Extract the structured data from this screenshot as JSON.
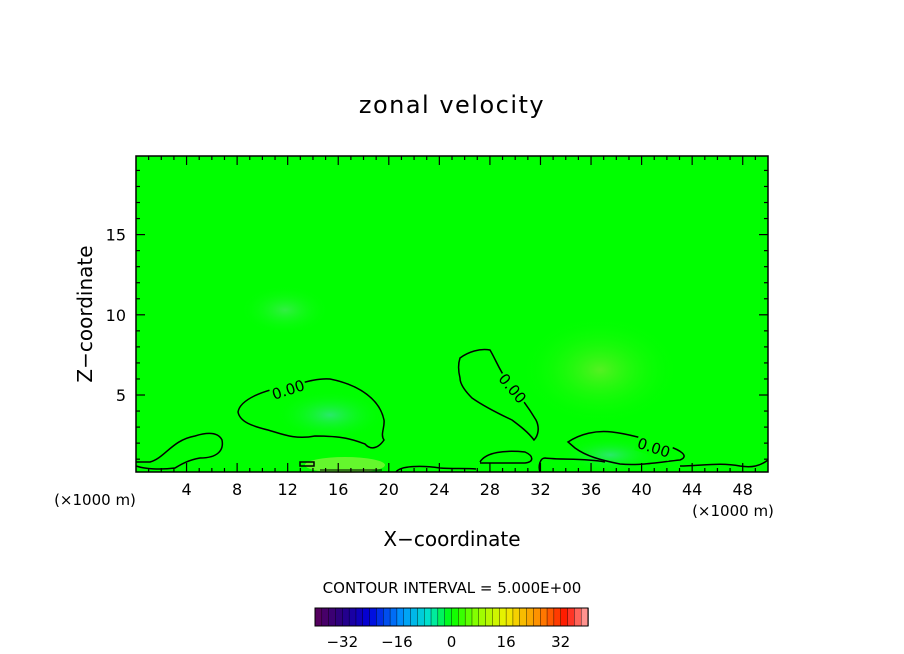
{
  "chart_data": {
    "type": "heatmap",
    "title": "zonal velocity",
    "xlabel": "X−coordinate",
    "ylabel": "Z−coordinate",
    "x_unit_left": "(×1000 m)",
    "x_unit_right": "(×1000 m)",
    "xlim": [
      0,
      50
    ],
    "ylim": [
      0.2,
      19.9
    ],
    "x_ticks": [
      4,
      8,
      12,
      16,
      20,
      24,
      28,
      32,
      36,
      40,
      44,
      48
    ],
    "x_tick_labels": [
      "4",
      "8",
      "12",
      "16",
      "20",
      "24",
      "28",
      "32",
      "36",
      "40",
      "44",
      "48"
    ],
    "y_ticks": [
      5,
      10,
      15
    ],
    "y_tick_labels": [
      "5",
      "10",
      "15"
    ],
    "contour_label": "0.00",
    "contour_interval_text": "CONTOUR INTERVAL = 5.000E+00",
    "colorbar": {
      "min": -40,
      "max": 40,
      "ticks": [
        -32,
        -16,
        0,
        16,
        32
      ],
      "tick_labels": [
        "−32",
        "−16",
        "0",
        "16",
        "32"
      ]
    },
    "background_color": "#00ff00"
  }
}
